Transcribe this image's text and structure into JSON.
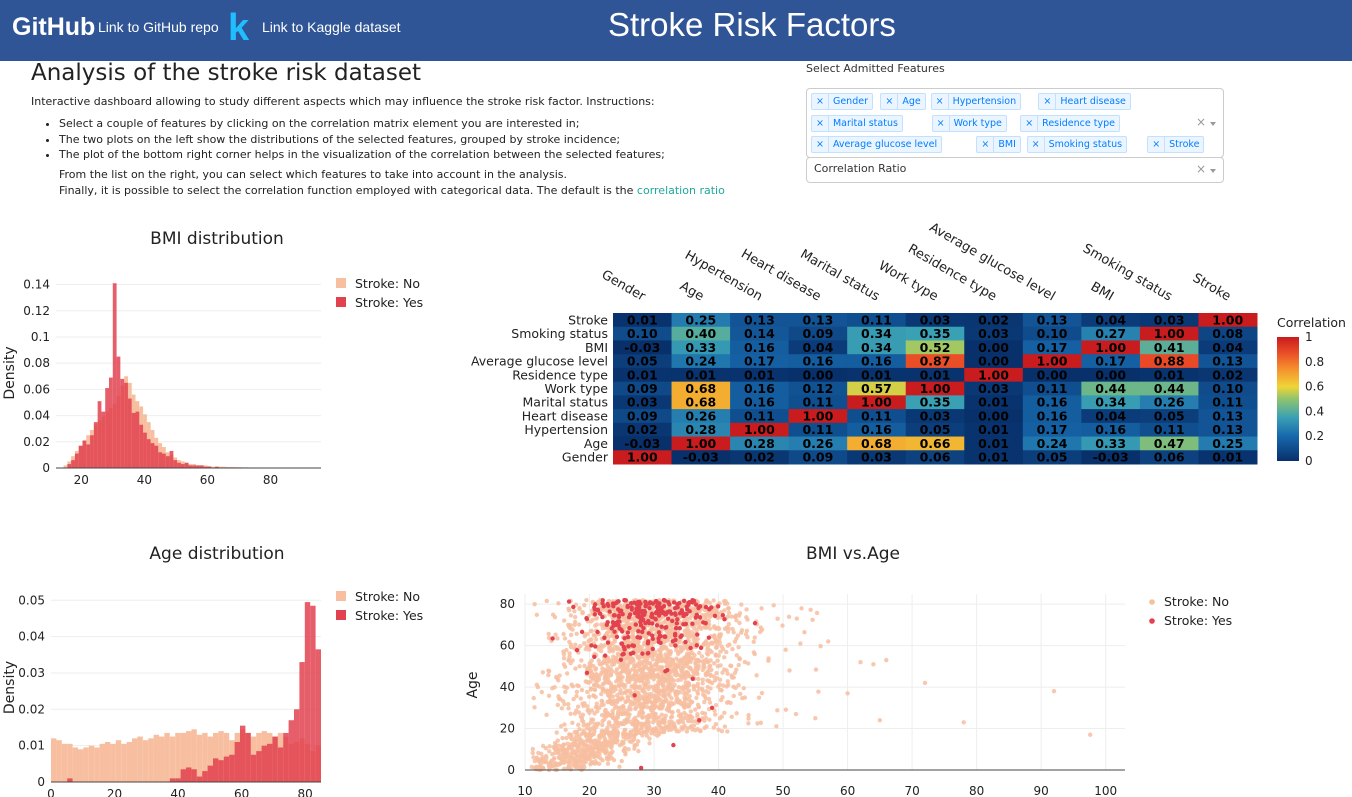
{
  "header": {
    "logo": "GitHub",
    "github_link": "Link to GitHub repo",
    "kaggle_logo": "k",
    "kaggle_link": "Link to Kaggle dataset",
    "title": "Stroke Risk Factors"
  },
  "intro": {
    "heading": "Analysis of the stroke risk dataset",
    "text": "Interactive dashboard allowing to study different aspects which may influence the stroke risk factor. Instructions:",
    "bullets": [
      "Select a couple of features by clicking on the correlation matrix element you are interested in;",
      "The two plots on the left show the distributions of the selected features, grouped by stroke incidence;",
      "The plot of the bottom right corner helps in the visualization of the correlation between the selected features;"
    ],
    "extra1": "From the list on the right, you can select which features to take into account in the analysis.",
    "extra2": "Finally, it is possible to select the correlation function employed with categorical data. The default is the ",
    "extra2_link": "correlation ratio"
  },
  "controls": {
    "features_label": "Select Admitted Features",
    "features": [
      "Gender",
      "Age",
      "Hypertension",
      "Heart disease",
      "Marital status",
      "Work type",
      "Residence type",
      "Average glucose level",
      "BMI",
      "Smoking status",
      "Stroke"
    ],
    "remove_glyph": "×",
    "clear_glyph": "×",
    "correlation_value": "Correlation Ratio"
  },
  "colors": {
    "header_bg": "#2f5596",
    "stroke_no": "#f7bea0",
    "stroke_yes": "#e2424f",
    "link": "#1fa89c"
  },
  "chart_data": [
    {
      "type": "bar",
      "id": "bmi-hist",
      "title": "BMI distribution",
      "ylabel": "Density",
      "xlabel": "",
      "xlim": [
        12,
        96
      ],
      "ylim": [
        0,
        0.145
      ],
      "xticks": [
        20,
        40,
        60,
        80
      ],
      "yticks": [
        0,
        0.02,
        0.04,
        0.06,
        0.08,
        0.1,
        0.12,
        0.14
      ],
      "ytick_labels": [
        "0",
        "0.02",
        "0.04",
        "0.06",
        "0.08",
        "0.1",
        "0.12",
        "0.14"
      ],
      "legend_position": "top-right",
      "bin_width": 1.2,
      "x_start": 12,
      "series": [
        {
          "name": "Stroke: No",
          "values": [
            0,
            0,
            0.002,
            0.005,
            0.009,
            0.013,
            0.017,
            0.021,
            0.025,
            0.029,
            0.033,
            0.036,
            0.039,
            0.043,
            0.046,
            0.049,
            0.055,
            0.063,
            0.07,
            0.065,
            0.056,
            0.051,
            0.047,
            0.041,
            0.035,
            0.029,
            0.023,
            0.019,
            0.016,
            0.012,
            0.01,
            0.008,
            0.006,
            0.005,
            0.004,
            0.003,
            0.003,
            0.002,
            0.002,
            0.002,
            0.0015,
            0.001,
            0.001,
            0.001,
            0.001,
            0.0008,
            0.0008,
            0.0007,
            0.0006,
            0.0005,
            0.0005,
            0.0004,
            0.0004,
            0.0004,
            0.0003,
            0.0003,
            0.0003,
            0.0003,
            0.0002,
            0.0002,
            0.0002,
            0.0002,
            0.0002,
            0.0002,
            0.0002,
            0.0001,
            0.0001,
            0.0001,
            0.0001,
            0.0001
          ]
        },
        {
          "name": "Stroke: Yes",
          "values": [
            0,
            0,
            0,
            0.003,
            0.006,
            0.011,
            0.017,
            0.021,
            0.018,
            0.025,
            0.035,
            0.051,
            0.043,
            0.061,
            0.069,
            0.141,
            0.085,
            0.068,
            0.065,
            0.053,
            0.042,
            0.043,
            0.033,
            0.027,
            0.022,
            0.019,
            0.017,
            0.012,
            0.011,
            0.009,
            0.013,
            0.006,
            0.004,
            0.003,
            0.004,
            0.002,
            0.002,
            0.002,
            0.002,
            0.001,
            0.001,
            0,
            0.001,
            0,
            0,
            0,
            0,
            0,
            0,
            0,
            0,
            0,
            0,
            0,
            0,
            0,
            0,
            0,
            0,
            0,
            0,
            0,
            0,
            0,
            0,
            0,
            0,
            0,
            0,
            0
          ]
        }
      ]
    },
    {
      "type": "heatmap",
      "id": "corr-matrix",
      "x_labels": [
        "Gender",
        "Age",
        "Hypertension",
        "Heart disease",
        "Marital status",
        "Work type",
        "Residence type",
        "Average glucose level",
        "BMI",
        "Smoking status",
        "Stroke"
      ],
      "y_labels": [
        "Stroke",
        "Smoking status",
        "BMI",
        "Average glucose level",
        "Residence type",
        "Work type",
        "Marital status",
        "Heart disease",
        "Hypertension",
        "Age",
        "Gender"
      ],
      "values": [
        [
          0.01,
          0.25,
          0.13,
          0.13,
          0.11,
          0.03,
          0.02,
          0.13,
          0.04,
          0.03,
          1.0
        ],
        [
          0.1,
          0.4,
          0.14,
          0.09,
          0.34,
          0.35,
          0.03,
          0.1,
          0.27,
          1.0,
          0.08
        ],
        [
          -0.03,
          0.33,
          0.16,
          0.04,
          0.34,
          0.52,
          -0.0,
          0.17,
          1.0,
          0.41,
          0.04
        ],
        [
          0.05,
          0.24,
          0.17,
          0.16,
          0.16,
          0.87,
          -0.0,
          1.0,
          0.17,
          0.88,
          0.13
        ],
        [
          0.01,
          0.01,
          0.01,
          0.0,
          0.01,
          0.01,
          1.0,
          -0.0,
          -0.0,
          0.01,
          0.02
        ],
        [
          0.09,
          0.68,
          0.16,
          0.12,
          0.57,
          1.0,
          0.03,
          0.11,
          0.44,
          0.44,
          0.1
        ],
        [
          0.03,
          0.68,
          0.16,
          0.11,
          1.0,
          0.35,
          0.01,
          0.16,
          0.34,
          0.26,
          0.11
        ],
        [
          0.09,
          0.26,
          0.11,
          1.0,
          0.11,
          0.03,
          0.0,
          0.16,
          0.04,
          0.05,
          0.13
        ],
        [
          0.02,
          0.28,
          1.0,
          0.11,
          0.16,
          0.05,
          0.01,
          0.17,
          0.16,
          0.11,
          0.13
        ],
        [
          -0.03,
          1.0,
          0.28,
          0.26,
          0.68,
          0.66,
          0.01,
          0.24,
          0.33,
          0.47,
          0.25
        ],
        [
          1.0,
          -0.03,
          0.02,
          0.09,
          0.03,
          0.06,
          0.01,
          0.05,
          -0.03,
          0.06,
          0.01
        ]
      ],
      "colorbar_title": "Correlation",
      "colorbar_ticks": [
        0,
        0.2,
        0.4,
        0.6,
        0.8,
        1
      ],
      "colorbar_tick_labels": [
        "0",
        "0.2",
        "0.4",
        "0.6",
        "0.8",
        "1"
      ],
      "zlim": [
        0,
        1
      ]
    },
    {
      "type": "bar",
      "id": "age-hist",
      "title": "Age distribution",
      "ylabel": "Density",
      "xlabel": "",
      "xlim": [
        0,
        85
      ],
      "ylim": [
        0,
        0.052
      ],
      "xticks": [
        0,
        20,
        40,
        60,
        80
      ],
      "yticks": [
        0,
        0.01,
        0.02,
        0.03,
        0.04,
        0.05
      ],
      "ytick_labels": [
        "0",
        "0.01",
        "0.02",
        "0.03",
        "0.04",
        "0.05"
      ],
      "legend_position": "top-right",
      "bin_width": 1.7,
      "x_start": 0,
      "series": [
        {
          "name": "Stroke: No",
          "values": [
            0.012,
            0.0115,
            0.0105,
            0.0105,
            0.0095,
            0.009,
            0.0095,
            0.01,
            0.0095,
            0.0105,
            0.011,
            0.0105,
            0.0115,
            0.0105,
            0.011,
            0.012,
            0.0125,
            0.0115,
            0.012,
            0.013,
            0.0125,
            0.0135,
            0.0125,
            0.0135,
            0.0135,
            0.014,
            0.0145,
            0.013,
            0.0135,
            0.0125,
            0.0135,
            0.014,
            0.0135,
            0.0115,
            0.0135,
            0.0145,
            0.0135,
            0.0125,
            0.0135,
            0.014,
            0.0135,
            0.0125,
            0.0135,
            0.0125,
            0.0105,
            0.011,
            0.012,
            0.0105,
            0.0085,
            0.01
          ]
        },
        {
          "name": "Stroke: Yes",
          "values": [
            0,
            0,
            0,
            0.001,
            0,
            0,
            0,
            0,
            0,
            0,
            0,
            0,
            0,
            0,
            0,
            0,
            0,
            0,
            0,
            0,
            0,
            0,
            0.001,
            0.001,
            0.0035,
            0.004,
            0.0035,
            0.0015,
            0.003,
            0.0045,
            0.0065,
            0.006,
            0.007,
            0.0075,
            0.011,
            0.0155,
            0.0135,
            0.0075,
            0.0085,
            0.01,
            0.0105,
            0.0125,
            0.0095,
            0.0135,
            0.017,
            0.02,
            0.033,
            0.0495,
            0.0485,
            0.0365
          ]
        }
      ]
    },
    {
      "type": "scatter",
      "id": "bmi-age-scatter",
      "title": "BMI vs.Age",
      "xlabel": "",
      "ylabel": "Age",
      "xlim": [
        10,
        103
      ],
      "ylim": [
        0,
        82
      ],
      "xticks": [
        10,
        20,
        30,
        40,
        50,
        60,
        70,
        80,
        90,
        100
      ],
      "yticks": [
        0,
        20,
        40,
        60,
        80
      ],
      "legend_position": "top-right",
      "series": [
        {
          "name": "Stroke: No"
        },
        {
          "name": "Stroke: Yes"
        }
      ]
    }
  ]
}
